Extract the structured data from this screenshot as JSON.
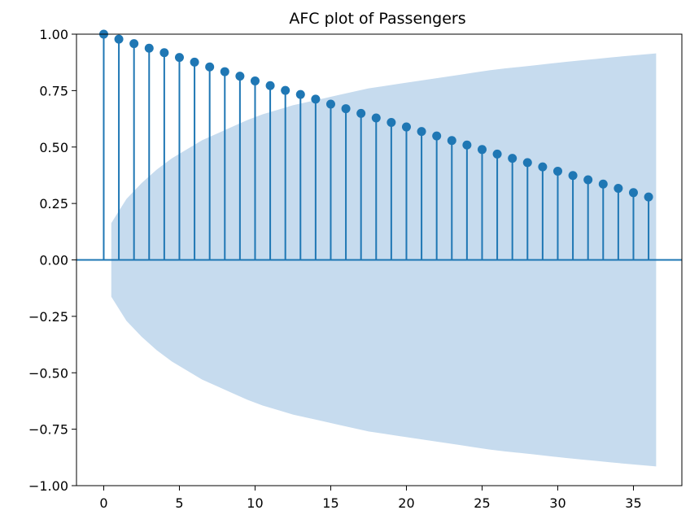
{
  "chart_data": {
    "type": "stem",
    "title": "AFC plot of Passengers",
    "xlabel": "",
    "ylabel": "",
    "xlim": [
      -1.8,
      38.2
    ],
    "ylim": [
      -1.0,
      1.0
    ],
    "xticks": [
      0,
      5,
      10,
      15,
      20,
      25,
      30,
      35
    ],
    "xtick_labels": [
      "0",
      "5",
      "10",
      "15",
      "20",
      "25",
      "30",
      "35"
    ],
    "yticks": [
      1.0,
      0.75,
      0.5,
      0.25,
      0.0,
      -0.25,
      -0.5,
      -0.75,
      -1.0
    ],
    "ytick_labels": [
      "1.00",
      "0.75",
      "0.50",
      "0.25",
      "0.00",
      "−0.25",
      "−0.50",
      "−0.75",
      "−1.00"
    ],
    "grid": false,
    "series": [
      {
        "lags": [
          0,
          1,
          2,
          3,
          4,
          5,
          6,
          7,
          8,
          9,
          10,
          11,
          12,
          13,
          14,
          15,
          16,
          17,
          18,
          19,
          20,
          21,
          22,
          23,
          24,
          25,
          26,
          27,
          28,
          29,
          30,
          31,
          32,
          33,
          34,
          35,
          36
        ],
        "values": [
          1.0,
          0.978,
          0.958,
          0.938,
          0.918,
          0.897,
          0.876,
          0.855,
          0.834,
          0.814,
          0.793,
          0.772,
          0.751,
          0.733,
          0.712,
          0.69,
          0.67,
          0.649,
          0.629,
          0.609,
          0.589,
          0.569,
          0.549,
          0.529,
          0.509,
          0.489,
          0.469,
          0.45,
          0.431,
          0.412,
          0.393,
          0.374,
          0.355,
          0.336,
          0.317,
          0.298,
          0.279
        ]
      }
    ],
    "confidence_band": {
      "x_start": 0.5,
      "x_end": 36.5,
      "upper": [
        0.163,
        0.27,
        0.34,
        0.4,
        0.45,
        0.49,
        0.53,
        0.56,
        0.59,
        0.62,
        0.645,
        0.665,
        0.685,
        0.7,
        0.715,
        0.73,
        0.745,
        0.76,
        0.77,
        0.78,
        0.79,
        0.8,
        0.81,
        0.82,
        0.83,
        0.84,
        0.848,
        0.855,
        0.862,
        0.87,
        0.877,
        0.884,
        0.89,
        0.897,
        0.903,
        0.909,
        0.915
      ]
    },
    "colors": {
      "stem": "#1f77b4",
      "band": "#c6dbee",
      "axis": "#000000"
    }
  }
}
